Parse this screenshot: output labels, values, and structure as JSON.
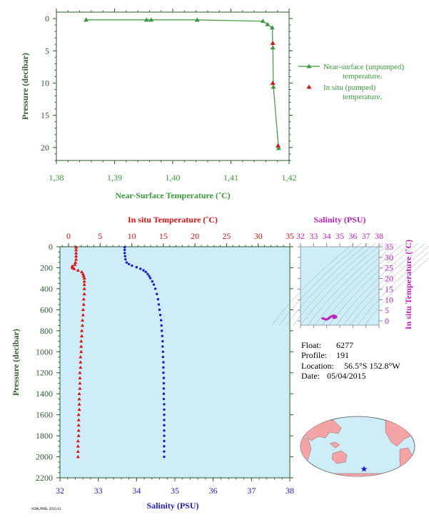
{
  "float_info": {
    "float_label": "Float:",
    "float_value": "6277",
    "profile_label": "Profile:",
    "profile_value": "191",
    "location_label": "Location:",
    "location_value": "56.5°S  152.8°W",
    "date_label": "Date:",
    "date_value": "05/04/2015"
  },
  "colors": {
    "green": "#3a9a3a",
    "red": "#e01010",
    "blue": "#1a1acc",
    "magenta": "#c020c0",
    "panel_bg": "#cdeef9"
  },
  "footer_text": "AOML/PMEL 2015-01",
  "chart_data": [
    {
      "type": "line",
      "xlabel": "Near-Surface Temperature (˚C)",
      "ylabel": "Pressure (decibar)",
      "xlim": [
        1.38,
        1.42
      ],
      "ylim": [
        22,
        -1
      ],
      "xticks": [
        "1,38",
        "1,39",
        "1,40",
        "1,41",
        "1,42"
      ],
      "yticks": [
        "0",
        "5",
        "10",
        "15",
        "20"
      ],
      "series": [
        {
          "name": "Near-surface (unpumped) temperature.",
          "x": [
            1.3851,
            1.3955,
            1.3963,
            1.4042,
            1.4155,
            1.4163,
            1.4171,
            1.4172,
            1.4173,
            1.4182
          ],
          "y": [
            0.2,
            0.2,
            0.2,
            0.2,
            0.4,
            0.9,
            1.4,
            4.5,
            10.6,
            20.1
          ]
        },
        {
          "name": "In situ (pumped) temperature.",
          "x": [
            1.4172,
            1.4172,
            1.4181
          ],
          "y": [
            3.8,
            10.0,
            19.7
          ]
        }
      ],
      "legend": [
        {
          "line1": "Near-surface (unpumped)",
          "line2": "temperature."
        },
        {
          "line1": "In situ (pumped)",
          "line2": "temperature."
        }
      ],
      "legend_position": "right"
    },
    {
      "type": "scatter",
      "ylabel": "Pressure (decibar)",
      "ylim": [
        2200,
        0
      ],
      "yticks": [
        "0",
        "200",
        "400",
        "600",
        "800",
        "1000",
        "1200",
        "1400",
        "1600",
        "1800",
        "2000",
        "2200"
      ],
      "top_axis": {
        "label": "In situ Temperature (˚C)",
        "range": [
          -2,
          35
        ],
        "ticks": [
          "0",
          "5",
          "10",
          "15",
          "20",
          "25",
          "30",
          "35"
        ]
      },
      "bottom_axis": {
        "label": "Salinity (PSU)",
        "range": [
          32,
          38
        ],
        "ticks": [
          "32",
          "33",
          "34",
          "35",
          "36",
          "37",
          "38"
        ]
      },
      "series": [
        {
          "name": "temperature",
          "p": [
            5,
            30,
            60,
            90,
            120,
            150,
            170,
            185,
            200,
            210,
            225,
            240,
            260,
            280,
            300,
            330,
            360,
            400,
            450,
            500,
            550,
            600,
            650,
            700,
            750,
            800,
            850,
            900,
            950,
            1000,
            1050,
            1100,
            1150,
            1200,
            1250,
            1300,
            1350,
            1400,
            1450,
            1500,
            1550,
            1600,
            1650,
            1700,
            1750,
            1800,
            1850,
            1900,
            1950,
            2000
          ],
          "t": [
            1.2,
            1.2,
            1.2,
            1.2,
            1.2,
            1.1,
            1.0,
            0.6,
            0.6,
            0.9,
            1.5,
            2.1,
            2.3,
            2.4,
            2.5,
            2.5,
            2.5,
            2.5,
            2.5,
            2.4,
            2.4,
            2.3,
            2.3,
            2.2,
            2.2,
            2.1,
            2.1,
            2.0,
            2.0,
            2.0,
            1.9,
            1.9,
            1.9,
            1.8,
            1.8,
            1.8,
            1.8,
            1.7,
            1.7,
            1.7,
            1.7,
            1.6,
            1.6,
            1.6,
            1.6,
            1.6,
            1.5,
            1.5,
            1.5,
            1.5
          ]
        },
        {
          "name": "salinity",
          "p": [
            5,
            30,
            60,
            90,
            120,
            150,
            165,
            180,
            195,
            210,
            225,
            240,
            260,
            280,
            300,
            330,
            360,
            400,
            450,
            500,
            550,
            600,
            650,
            700,
            750,
            800,
            850,
            900,
            950,
            1000,
            1050,
            1100,
            1150,
            1200,
            1250,
            1300,
            1350,
            1400,
            1450,
            1500,
            1550,
            1600,
            1650,
            1700,
            1750,
            1800,
            1850,
            1900,
            1950,
            2000
          ],
          "s": [
            33.69,
            33.69,
            33.69,
            33.7,
            33.71,
            33.74,
            33.8,
            33.88,
            34.0,
            34.1,
            34.18,
            34.24,
            34.29,
            34.33,
            34.36,
            34.41,
            34.45,
            34.49,
            34.53,
            34.56,
            34.58,
            34.6,
            34.62,
            34.64,
            34.65,
            34.66,
            34.67,
            34.68,
            34.68,
            34.69,
            34.69,
            34.7,
            34.7,
            34.7,
            34.71,
            34.71,
            34.71,
            34.71,
            34.71,
            34.72,
            34.72,
            34.72,
            34.72,
            34.72,
            34.72,
            34.72,
            34.72,
            34.72,
            34.72,
            34.72
          ]
        }
      ]
    },
    {
      "type": "scatter",
      "title": "Salinity (PSU)",
      "ylabel": "In situ Temperature (˚C)",
      "xlim": [
        32,
        38
      ],
      "ylim": [
        -2,
        35
      ],
      "xticks": [
        "32",
        "33",
        "34",
        "35",
        "36",
        "37",
        "38"
      ],
      "yticks": [
        "0",
        "5",
        "10",
        "15",
        "20",
        "25",
        "30",
        "35"
      ],
      "series": [
        {
          "name": "T-S",
          "s": [
            33.69,
            33.71,
            33.76,
            33.85,
            33.95,
            34.05,
            34.15,
            34.25,
            34.35,
            34.45,
            34.55,
            34.62,
            34.68,
            34.72,
            34.7,
            34.66,
            34.6,
            34.52
          ],
          "t": [
            1.2,
            1.2,
            1.1,
            0.9,
            0.7,
            0.8,
            1.2,
            1.7,
            2.1,
            2.4,
            2.5,
            2.4,
            2.2,
            2.0,
            1.8,
            1.6,
            1.5,
            1.5
          ]
        }
      ]
    }
  ]
}
